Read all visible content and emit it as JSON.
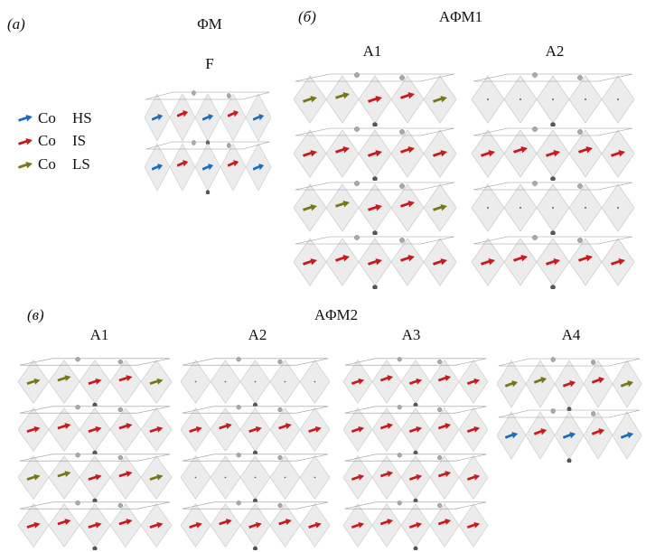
{
  "panels": [
    {
      "label": "(a)",
      "title": "ΦM",
      "structures": [
        {
          "label": "F"
        }
      ]
    },
    {
      "label": "(б)",
      "title": "AΦM1",
      "structures": [
        {
          "label": "A1"
        },
        {
          "label": "A2"
        }
      ]
    },
    {
      "label": "(в)",
      "title": "AΦM2",
      "structures": [
        {
          "label": "A1"
        },
        {
          "label": "A2"
        },
        {
          "label": "A3"
        },
        {
          "label": "A4"
        }
      ]
    }
  ],
  "legend": [
    {
      "element": "Co",
      "state": "HS"
    },
    {
      "element": "Co",
      "state": "IS"
    },
    {
      "element": "Co",
      "state": "LS"
    }
  ]
}
